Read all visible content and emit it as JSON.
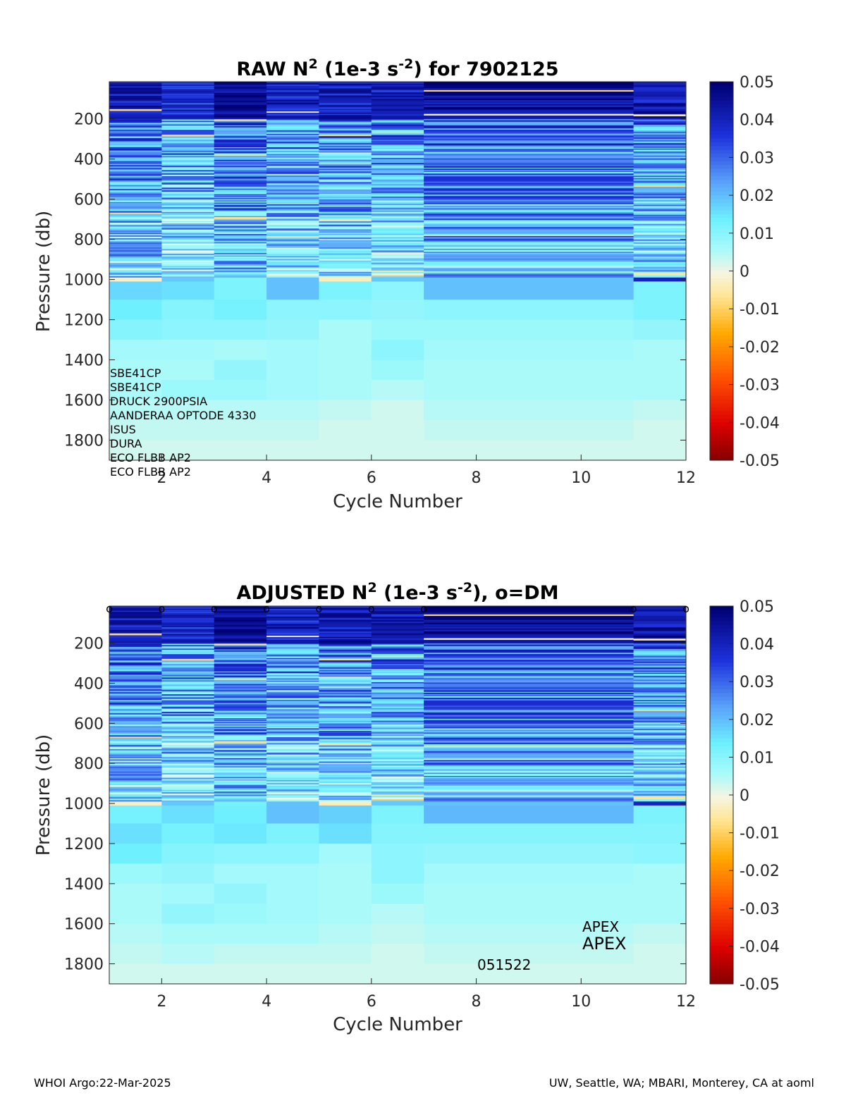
{
  "footer": {
    "left": "WHOI Argo:22-Mar-2025",
    "right": "UW, Seattle, WA; MBARI, Monterey, CA at aoml"
  },
  "chart_data": [
    {
      "type": "heatmap",
      "id": "raw",
      "title_parts": [
        "RAW N",
        "2",
        " (1e-3 s",
        "-2",
        ") for 7902125"
      ],
      "xlabel": "Cycle Number",
      "ylabel": "Pressure (db)",
      "xlim": [
        1,
        12
      ],
      "ylim": [
        1900,
        15
      ],
      "x_ticks": [
        2,
        4,
        6,
        8,
        10,
        12
      ],
      "y_ticks": [
        200,
        400,
        600,
        800,
        1000,
        1200,
        1400,
        1600,
        1800
      ],
      "colorbar": {
        "min": -0.05,
        "max": 0.05,
        "ticks": [
          "0.05",
          "0.04",
          "0.03",
          "0.02",
          "0.01",
          "0",
          "-0.01",
          "-0.02",
          "-0.03",
          "-0.04",
          "-0.05"
        ]
      },
      "annotations": [
        "SBE41CP",
        "SBE41CP",
        "DRUCK 2900PSIA",
        "AANDERAA OPTODE 4330",
        "ISUS",
        "DURA",
        "ECO FLBB AP2",
        "ECO FLBB AP2"
      ],
      "columns": [
        {
          "x_from": 1,
          "x_to": 2,
          "upper_mean": 0.032,
          "bands": [
            [
              990,
              1010,
              -0.002
            ],
            [
              1010,
              1100,
              0.017
            ],
            [
              1100,
              1200,
              0.014
            ],
            [
              1200,
              1300,
              0.011
            ],
            [
              1300,
              1400,
              0.007
            ],
            [
              1400,
              1500,
              0.006
            ],
            [
              1500,
              1600,
              0.006
            ],
            [
              1600,
              1700,
              0.005
            ],
            [
              1700,
              1800,
              0.004
            ],
            [
              1800,
              1900,
              0.003
            ]
          ]
        },
        {
          "x_from": 2,
          "x_to": 3,
          "upper_mean": 0.028,
          "bands": [
            [
              990,
              1010,
              0.019
            ],
            [
              1010,
              1100,
              0.016
            ],
            [
              1100,
              1200,
              0.011
            ],
            [
              1200,
              1300,
              0.01
            ],
            [
              1300,
              1400,
              0.007
            ],
            [
              1400,
              1500,
              0.006
            ],
            [
              1500,
              1600,
              0.008
            ],
            [
              1600,
              1700,
              0.005
            ],
            [
              1700,
              1800,
              0.004
            ],
            [
              1800,
              1900,
              0.003
            ]
          ]
        },
        {
          "x_from": 3,
          "x_to": 4,
          "upper_mean": 0.036,
          "bands": [
            [
              990,
              1010,
              0.012
            ],
            [
              1010,
              1100,
              0.012
            ],
            [
              1100,
              1200,
              0.013
            ],
            [
              1200,
              1300,
              0.01
            ],
            [
              1300,
              1400,
              0.006
            ],
            [
              1400,
              1500,
              0.009
            ],
            [
              1500,
              1600,
              0.008
            ],
            [
              1600,
              1700,
              0.005
            ],
            [
              1700,
              1800,
              0.004
            ],
            [
              1800,
              1900,
              0.003
            ]
          ]
        },
        {
          "x_from": 4,
          "x_to": 5,
          "upper_mean": 0.03,
          "bands": [
            [
              990,
              1010,
              0.02
            ],
            [
              1010,
              1100,
              0.02
            ],
            [
              1100,
              1200,
              0.01
            ],
            [
              1200,
              1300,
              0.009
            ],
            [
              1300,
              1400,
              0.007
            ],
            [
              1400,
              1500,
              0.007
            ],
            [
              1500,
              1600,
              0.007
            ],
            [
              1600,
              1700,
              0.005
            ],
            [
              1700,
              1800,
              0.004
            ],
            [
              1800,
              1900,
              0.003
            ]
          ]
        },
        {
          "x_from": 5,
          "x_to": 6,
          "upper_mean": 0.031,
          "bands": [
            [
              990,
              1010,
              -0.003
            ],
            [
              1010,
              1100,
              0.012
            ],
            [
              1100,
              1200,
              0.01
            ],
            [
              1200,
              1300,
              0.006
            ],
            [
              1300,
              1400,
              0.006
            ],
            [
              1400,
              1500,
              0.006
            ],
            [
              1500,
              1600,
              0.006
            ],
            [
              1600,
              1700,
              0.004
            ],
            [
              1700,
              1800,
              0.003
            ],
            [
              1800,
              1900,
              0.003
            ]
          ]
        },
        {
          "x_from": 6,
          "x_to": 7,
          "upper_mean": 0.03,
          "bands": [
            [
              990,
              1010,
              0.019
            ],
            [
              1010,
              1100,
              0.01
            ],
            [
              1100,
              1200,
              0.009
            ],
            [
              1200,
              1300,
              0.008
            ],
            [
              1300,
              1400,
              0.01
            ],
            [
              1400,
              1500,
              0.008
            ],
            [
              1500,
              1600,
              0.005
            ],
            [
              1600,
              1700,
              0.003
            ],
            [
              1700,
              1800,
              0.003
            ],
            [
              1800,
              1900,
              0.003
            ]
          ]
        },
        {
          "x_from": 7,
          "x_to": 11,
          "upper_mean": 0.036,
          "bands": [
            [
              990,
              1010,
              0.02
            ],
            [
              1010,
              1100,
              0.02
            ],
            [
              1100,
              1200,
              0.01
            ],
            [
              1200,
              1300,
              0.008
            ],
            [
              1300,
              1400,
              0.007
            ],
            [
              1400,
              1500,
              0.006
            ],
            [
              1500,
              1600,
              0.006
            ],
            [
              1600,
              1700,
              0.005
            ],
            [
              1700,
              1800,
              0.004
            ],
            [
              1800,
              1900,
              0.003
            ]
          ]
        },
        {
          "x_from": 11,
          "x_to": 12,
          "upper_mean": 0.032,
          "bands": [
            [
              990,
              1010,
              0.04
            ],
            [
              1010,
              1100,
              0.012
            ],
            [
              1100,
              1200,
              0.012
            ],
            [
              1200,
              1300,
              0.009
            ],
            [
              1300,
              1400,
              0.006
            ],
            [
              1400,
              1500,
              0.006
            ],
            [
              1500,
              1600,
              0.006
            ],
            [
              1600,
              1700,
              0.004
            ],
            [
              1700,
              1800,
              0.003
            ],
            [
              1800,
              1900,
              0.003
            ]
          ]
        }
      ]
    },
    {
      "type": "heatmap",
      "id": "adjusted",
      "title_parts": [
        "ADJUSTED N",
        "2",
        " (1e-3 s",
        "-2",
        "), o=DM"
      ],
      "xlabel": "Cycle Number",
      "ylabel": "Pressure (db)",
      "xlim": [
        1,
        12
      ],
      "ylim": [
        1900,
        15
      ],
      "x_ticks": [
        2,
        4,
        6,
        8,
        10,
        12
      ],
      "y_ticks": [
        200,
        400,
        600,
        800,
        1000,
        1200,
        1400,
        1600,
        1800
      ],
      "colorbar": {
        "min": -0.05,
        "max": 0.05,
        "ticks": [
          "0.05",
          "0.04",
          "0.03",
          "0.02",
          "0.01",
          "0",
          "-0.01",
          "-0.02",
          "-0.03",
          "-0.04",
          "-0.05"
        ]
      },
      "dm_marker": "o",
      "dm_cycles": [
        1,
        2,
        3,
        4,
        5,
        6,
        7,
        11,
        12
      ],
      "annotations": [
        "APEX",
        "APEX",
        "051522"
      ],
      "columns": [
        {
          "x_from": 1,
          "x_to": 2,
          "upper_mean": 0.032,
          "bands": [
            [
              990,
              1010,
              -0.002
            ],
            [
              1010,
              1100,
              0.013
            ],
            [
              1100,
              1200,
              0.016
            ],
            [
              1200,
              1300,
              0.014
            ],
            [
              1300,
              1400,
              0.008
            ],
            [
              1400,
              1500,
              0.006
            ],
            [
              1500,
              1600,
              0.006
            ],
            [
              1600,
              1700,
              0.005
            ],
            [
              1700,
              1800,
              0.004
            ],
            [
              1800,
              1900,
              0.003
            ]
          ]
        },
        {
          "x_from": 2,
          "x_to": 3,
          "upper_mean": 0.029,
          "bands": [
            [
              990,
              1010,
              0.019
            ],
            [
              1010,
              1100,
              0.016
            ],
            [
              1100,
              1200,
              0.013
            ],
            [
              1200,
              1300,
              0.011
            ],
            [
              1300,
              1400,
              0.009
            ],
            [
              1400,
              1500,
              0.007
            ],
            [
              1500,
              1600,
              0.009
            ],
            [
              1600,
              1700,
              0.006
            ],
            [
              1700,
              1800,
              0.005
            ],
            [
              1800,
              1900,
              0.003
            ]
          ]
        },
        {
          "x_from": 3,
          "x_to": 4,
          "upper_mean": 0.036,
          "bands": [
            [
              990,
              1010,
              0.013
            ],
            [
              1010,
              1100,
              0.014
            ],
            [
              1100,
              1200,
              0.015
            ],
            [
              1200,
              1300,
              0.01
            ],
            [
              1300,
              1400,
              0.007
            ],
            [
              1400,
              1500,
              0.009
            ],
            [
              1500,
              1600,
              0.008
            ],
            [
              1600,
              1700,
              0.006
            ],
            [
              1700,
              1800,
              0.004
            ],
            [
              1800,
              1900,
              0.003
            ]
          ]
        },
        {
          "x_from": 4,
          "x_to": 5,
          "upper_mean": 0.03,
          "bands": [
            [
              990,
              1010,
              0.02
            ],
            [
              1010,
              1100,
              0.02
            ],
            [
              1100,
              1200,
              0.012
            ],
            [
              1200,
              1300,
              0.01
            ],
            [
              1300,
              1400,
              0.007
            ],
            [
              1400,
              1500,
              0.007
            ],
            [
              1500,
              1600,
              0.007
            ],
            [
              1600,
              1700,
              0.006
            ],
            [
              1700,
              1800,
              0.004
            ],
            [
              1800,
              1900,
              0.003
            ]
          ]
        },
        {
          "x_from": 5,
          "x_to": 6,
          "upper_mean": 0.032,
          "bands": [
            [
              990,
              1010,
              -0.003
            ],
            [
              1010,
              1100,
              0.018
            ],
            [
              1100,
              1200,
              0.016
            ],
            [
              1200,
              1300,
              0.007
            ],
            [
              1300,
              1400,
              0.006
            ],
            [
              1400,
              1500,
              0.006
            ],
            [
              1500,
              1600,
              0.006
            ],
            [
              1600,
              1700,
              0.005
            ],
            [
              1700,
              1800,
              0.004
            ],
            [
              1800,
              1900,
              0.003
            ]
          ]
        },
        {
          "x_from": 6,
          "x_to": 7,
          "upper_mean": 0.031,
          "bands": [
            [
              990,
              1010,
              0.019
            ],
            [
              1010,
              1100,
              0.012
            ],
            [
              1100,
              1200,
              0.011
            ],
            [
              1200,
              1300,
              0.01
            ],
            [
              1300,
              1400,
              0.01
            ],
            [
              1400,
              1500,
              0.008
            ],
            [
              1500,
              1600,
              0.005
            ],
            [
              1600,
              1700,
              0.004
            ],
            [
              1700,
              1800,
              0.003
            ],
            [
              1800,
              1900,
              0.003
            ]
          ]
        },
        {
          "x_from": 7,
          "x_to": 11,
          "upper_mean": 0.037,
          "bands": [
            [
              990,
              1010,
              0.02
            ],
            [
              1010,
              1100,
              0.021
            ],
            [
              1100,
              1200,
              0.011
            ],
            [
              1200,
              1300,
              0.009
            ],
            [
              1300,
              1400,
              0.007
            ],
            [
              1400,
              1500,
              0.006
            ],
            [
              1500,
              1600,
              0.006
            ],
            [
              1600,
              1700,
              0.005
            ],
            [
              1700,
              1800,
              0.004
            ],
            [
              1800,
              1900,
              0.003
            ]
          ]
        },
        {
          "x_from": 11,
          "x_to": 12,
          "upper_mean": 0.033,
          "bands": [
            [
              990,
              1010,
              0.04
            ],
            [
              1010,
              1100,
              0.012
            ],
            [
              1100,
              1200,
              0.011
            ],
            [
              1200,
              1300,
              0.01
            ],
            [
              1300,
              1400,
              0.006
            ],
            [
              1400,
              1500,
              0.006
            ],
            [
              1500,
              1600,
              0.006
            ],
            [
              1600,
              1700,
              0.004
            ],
            [
              1700,
              1800,
              0.003
            ],
            [
              1800,
              1900,
              0.003
            ]
          ]
        }
      ]
    }
  ]
}
